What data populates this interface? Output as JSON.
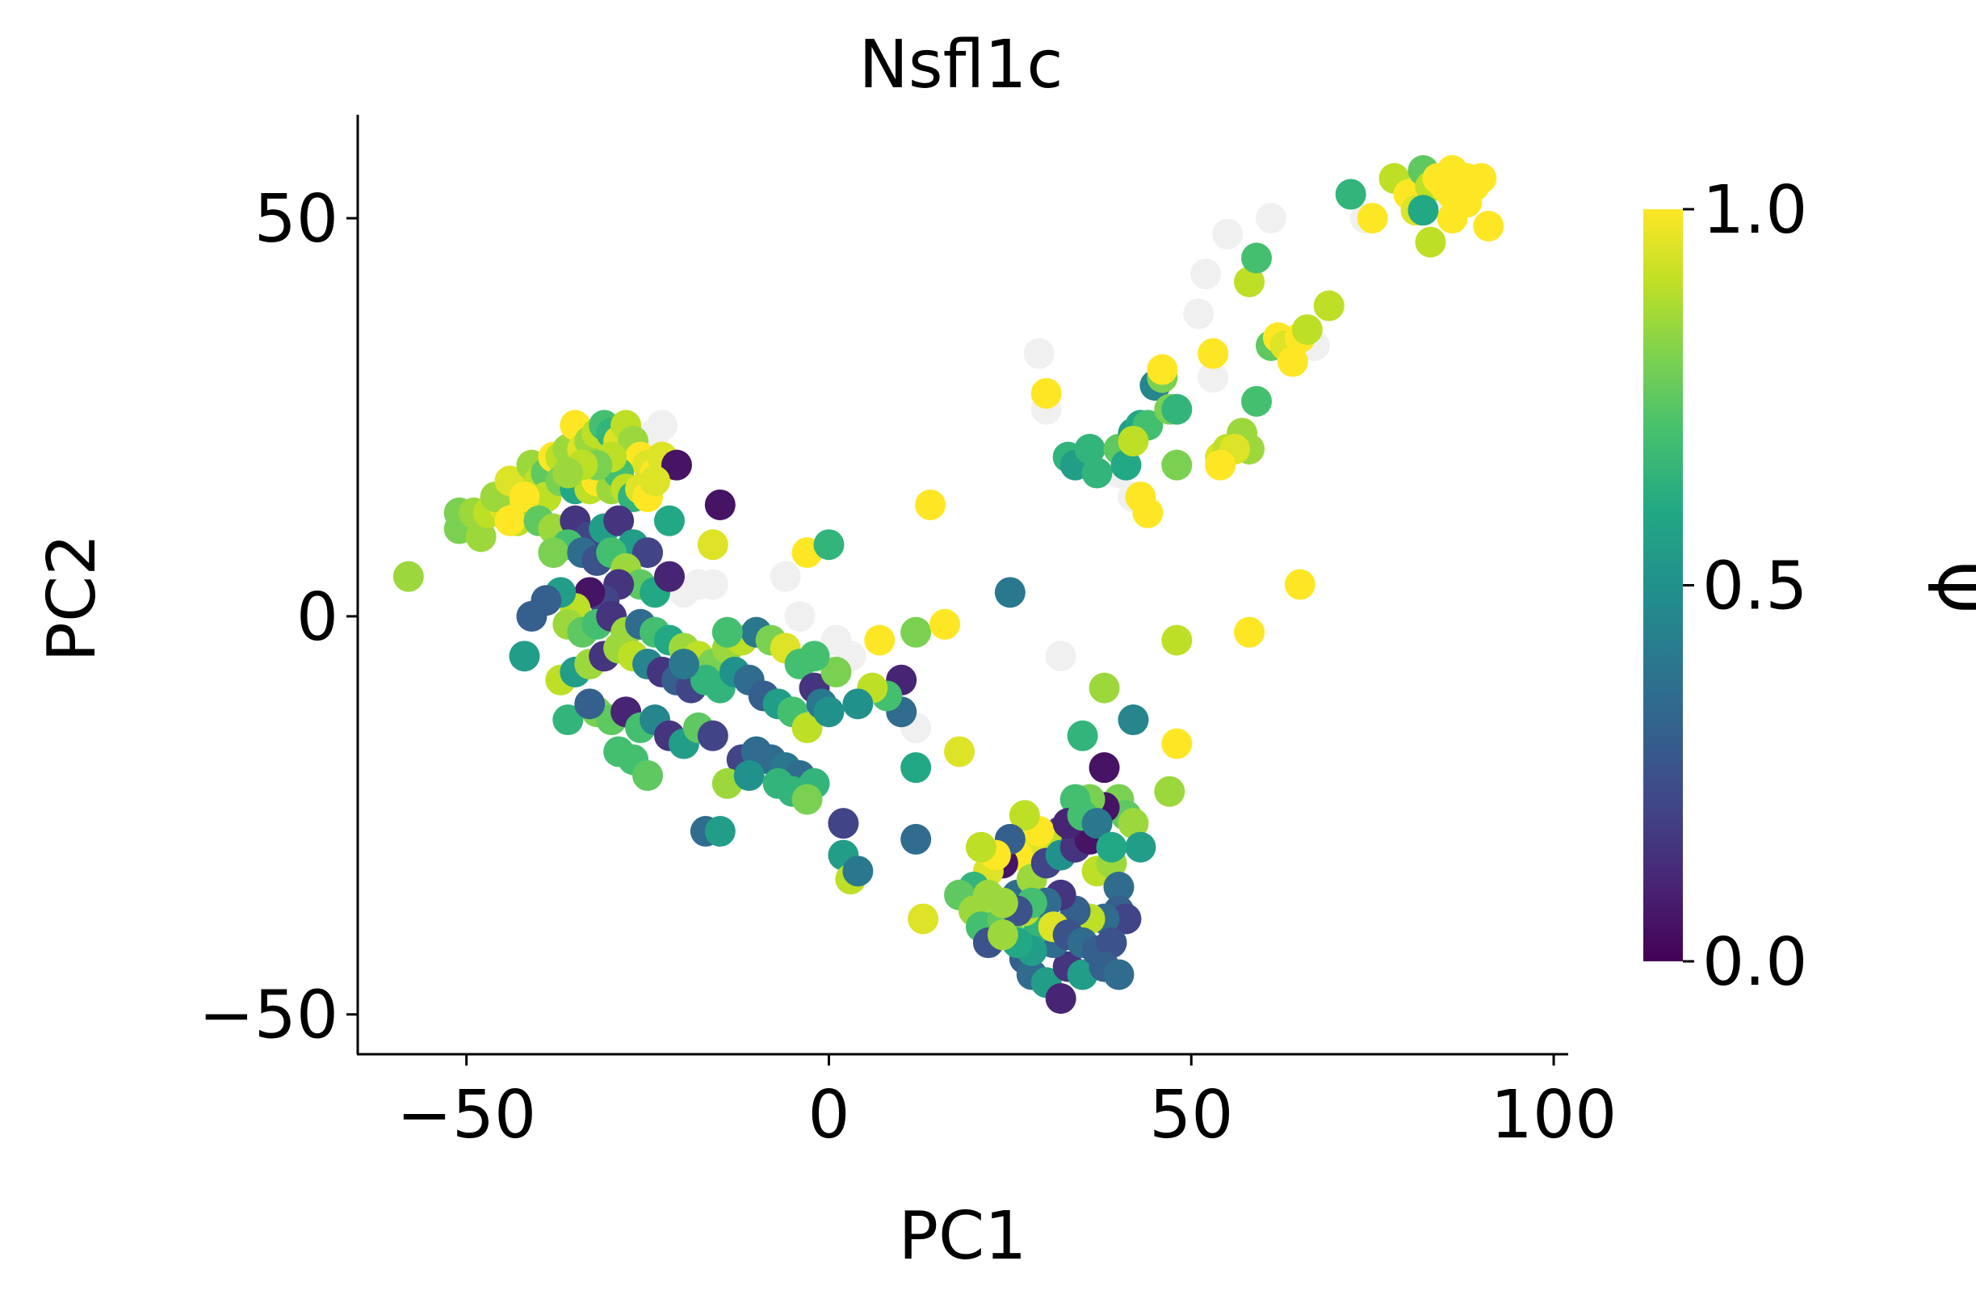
{
  "chart_data": {
    "type": "scatter",
    "title": "Nsfl1c",
    "xlabel": "PC1",
    "ylabel": "PC2",
    "xlim": [
      -65,
      102
    ],
    "ylim": [
      -55,
      63
    ],
    "xticks": [
      -50,
      0,
      50,
      100
    ],
    "xtick_labels": [
      "−50",
      "0",
      "50",
      "100"
    ],
    "yticks": [
      -50,
      0,
      50
    ],
    "ytick_labels": [
      "−50",
      "0",
      "50"
    ],
    "grid": false,
    "colorbar": {
      "label": "Ψ",
      "colormap": "viridis",
      "range": [
        0,
        1
      ],
      "ticks": [
        0.0,
        0.5,
        1.0
      ],
      "tick_labels": [
        "0.0",
        "0.5",
        "1.0"
      ]
    },
    "missing_color": "#f0f0f0",
    "na_points": [
      [
        -23,
        24
      ],
      [
        -24,
        23
      ],
      [
        -26,
        22
      ],
      [
        -16,
        4
      ],
      [
        -18,
        4
      ],
      [
        -20,
        3
      ],
      [
        -6,
        5
      ],
      [
        -4,
        0
      ],
      [
        1,
        -3
      ],
      [
        3,
        -5
      ],
      [
        12,
        -14
      ],
      [
        32,
        -5
      ],
      [
        29,
        33
      ],
      [
        -31,
        2
      ],
      [
        52,
        43
      ],
      [
        51,
        38
      ],
      [
        55,
        48
      ],
      [
        61,
        50
      ],
      [
        53,
        30
      ],
      [
        40,
        18
      ],
      [
        42,
        15
      ],
      [
        67,
        34
      ],
      [
        74,
        50
      ],
      [
        30,
        26
      ],
      [
        44,
        24
      ],
      [
        85,
        53
      ]
    ],
    "points": [
      [
        -58,
        5,
        0.85
      ],
      [
        -51,
        13,
        0.8
      ],
      [
        -51,
        11,
        0.8
      ],
      [
        -48,
        10,
        0.85
      ],
      [
        -49,
        13,
        0.85
      ],
      [
        -47,
        13,
        0.9
      ],
      [
        -45,
        14,
        0.95
      ],
      [
        -46,
        15,
        0.85
      ],
      [
        -43,
        12,
        0.9
      ],
      [
        -42,
        16,
        0.85
      ],
      [
        -44,
        17,
        0.95
      ],
      [
        -41,
        19,
        0.85
      ],
      [
        -40,
        17,
        0.9
      ],
      [
        -39,
        18,
        0.75
      ],
      [
        -38,
        20,
        1.0
      ],
      [
        -37,
        20,
        0.9
      ],
      [
        -36,
        21,
        0.85
      ],
      [
        -35,
        24,
        1.0
      ],
      [
        -34,
        21,
        0.95
      ],
      [
        -33,
        22,
        0.85
      ],
      [
        -32,
        23,
        0.9
      ],
      [
        -31,
        24,
        0.7
      ],
      [
        -30,
        23,
        0.65
      ],
      [
        -29,
        22,
        0.95
      ],
      [
        -28,
        24,
        0.9
      ],
      [
        -27,
        22,
        0.85
      ],
      [
        -26,
        20,
        1.0
      ],
      [
        -25,
        19,
        0.95
      ],
      [
        -24,
        18,
        1.0
      ],
      [
        -23,
        20,
        0.95
      ],
      [
        -22,
        19,
        0.95
      ],
      [
        -21,
        19,
        0.05
      ],
      [
        -39,
        15,
        0.9
      ],
      [
        -37,
        17,
        0.8
      ],
      [
        -35,
        16,
        0.6
      ],
      [
        -33,
        16,
        0.9
      ],
      [
        -32,
        17,
        1.0
      ],
      [
        -30,
        16,
        0.85
      ],
      [
        -29,
        18,
        0.7
      ],
      [
        -28,
        16,
        0.9
      ],
      [
        -27,
        15,
        0.65
      ],
      [
        -26,
        16,
        0.95
      ],
      [
        -25,
        15,
        1.0
      ],
      [
        -24,
        17,
        0.95
      ],
      [
        -30,
        20,
        0.9
      ],
      [
        -32,
        19,
        0.8
      ],
      [
        -34,
        19,
        0.9
      ],
      [
        -36,
        18,
        0.85
      ],
      [
        -42,
        15,
        1.0
      ],
      [
        -44,
        12,
        1.0
      ],
      [
        -40,
        12,
        0.75
      ],
      [
        -38,
        11,
        0.85
      ],
      [
        -35,
        12,
        0.15
      ],
      [
        -33,
        10,
        0.2
      ],
      [
        -31,
        11,
        0.55
      ],
      [
        -29,
        12,
        0.15
      ],
      [
        -27,
        9,
        0.55
      ],
      [
        -25,
        8,
        0.2
      ],
      [
        -36,
        9,
        0.7
      ],
      [
        -38,
        8,
        0.8
      ],
      [
        -34,
        8,
        0.35
      ],
      [
        -32,
        7,
        0.25
      ],
      [
        -30,
        8,
        0.7
      ],
      [
        -28,
        6,
        0.85
      ],
      [
        -26,
        4,
        0.75
      ],
      [
        -24,
        3,
        0.6
      ],
      [
        -22,
        5,
        0.1
      ],
      [
        -29,
        4,
        0.15
      ],
      [
        -31,
        2,
        0.2
      ],
      [
        -33,
        3,
        0.05
      ],
      [
        -35,
        1,
        0.9
      ],
      [
        -37,
        3,
        0.55
      ],
      [
        -39,
        2,
        0.3
      ],
      [
        -41,
        0,
        0.3
      ],
      [
        -42,
        -5,
        0.55
      ],
      [
        -36,
        -1,
        0.85
      ],
      [
        -34,
        -2,
        0.75
      ],
      [
        -32,
        -1,
        0.7
      ],
      [
        -30,
        0,
        0.15
      ],
      [
        -28,
        -2,
        0.85
      ],
      [
        -26,
        -1,
        0.35
      ],
      [
        -24,
        -2,
        0.7
      ],
      [
        -22,
        -3,
        0.6
      ],
      [
        -20,
        -4,
        0.85
      ],
      [
        -18,
        -5,
        0.9
      ],
      [
        -16,
        -6,
        0.8
      ],
      [
        -14,
        -4,
        0.85
      ],
      [
        -12,
        -3,
        0.9
      ],
      [
        -10,
        -2,
        0.4
      ],
      [
        -8,
        -3,
        0.8
      ],
      [
        -6,
        -4,
        0.95
      ],
      [
        -4,
        -6,
        0.7
      ],
      [
        -37,
        -8,
        0.9
      ],
      [
        -35,
        -7,
        0.55
      ],
      [
        -33,
        -6,
        0.85
      ],
      [
        -31,
        -5,
        0.15
      ],
      [
        -29,
        -4,
        0.85
      ],
      [
        -27,
        -5,
        0.9
      ],
      [
        -25,
        -6,
        0.45
      ],
      [
        -23,
        -7,
        0.15
      ],
      [
        -21,
        -8,
        0.3
      ],
      [
        -19,
        -9,
        0.2
      ],
      [
        -17,
        -8,
        0.65
      ],
      [
        -15,
        -9,
        0.65
      ],
      [
        -13,
        -7,
        0.5
      ],
      [
        -11,
        -8,
        0.35
      ],
      [
        -9,
        -10,
        0.3
      ],
      [
        -7,
        -11,
        0.55
      ],
      [
        -5,
        -12,
        0.7
      ],
      [
        -3,
        -14,
        0.9
      ],
      [
        -36,
        -13,
        0.65
      ],
      [
        -32,
        -12,
        0.8
      ],
      [
        -30,
        -13,
        0.75
      ],
      [
        -28,
        -12,
        0.1
      ],
      [
        -26,
        -14,
        0.7
      ],
      [
        -24,
        -13,
        0.45
      ],
      [
        -22,
        -15,
        0.15
      ],
      [
        -20,
        -16,
        0.55
      ],
      [
        -18,
        -14,
        0.75
      ],
      [
        -16,
        -15,
        0.2
      ],
      [
        -29,
        -17,
        0.7
      ],
      [
        -27,
        -18,
        0.7
      ],
      [
        -25,
        -20,
        0.75
      ],
      [
        -12,
        -18,
        0.2
      ],
      [
        -10,
        -17,
        0.35
      ],
      [
        -8,
        -18,
        0.35
      ],
      [
        -6,
        -19,
        0.4
      ],
      [
        -4,
        -20,
        0.35
      ],
      [
        -2,
        -21,
        0.65
      ],
      [
        -14,
        -21,
        0.85
      ],
      [
        -11,
        -20,
        0.5
      ],
      [
        -7,
        -21,
        0.65
      ],
      [
        -5,
        -22,
        0.65
      ],
      [
        -3,
        -23,
        0.8
      ],
      [
        -17,
        -27,
        0.35
      ],
      [
        -15,
        -27,
        0.55
      ],
      [
        2,
        -26,
        0.2
      ],
      [
        2,
        -30,
        0.55
      ],
      [
        3,
        -33,
        0.9
      ],
      [
        4,
        -32,
        0.4
      ],
      [
        10,
        -8,
        0.1
      ],
      [
        10,
        -12,
        0.35
      ],
      [
        12,
        -19,
        0.6
      ],
      [
        12,
        -28,
        0.35
      ],
      [
        13,
        -38,
        0.95
      ],
      [
        18,
        -17,
        0.95
      ],
      [
        8,
        -10,
        0.7
      ],
      [
        6,
        -9,
        0.9
      ],
      [
        4,
        -11,
        0.5
      ],
      [
        -2,
        -9,
        0.15
      ],
      [
        -1,
        -11,
        0.4
      ],
      [
        0,
        -12,
        0.5
      ],
      [
        1,
        -7,
        0.8
      ],
      [
        -2,
        -5,
        0.7
      ],
      [
        -14,
        -2,
        0.7
      ],
      [
        -20,
        -6,
        0.4
      ],
      [
        -33,
        -11,
        0.3
      ],
      [
        -15,
        14,
        0.05
      ],
      [
        -16,
        9,
        0.95
      ],
      [
        -22,
        12,
        0.6
      ],
      [
        -3,
        8,
        1.0
      ],
      [
        0,
        9,
        0.65
      ],
      [
        14,
        14,
        1.0
      ],
      [
        7,
        -3,
        1.0
      ],
      [
        12,
        -2,
        0.8
      ],
      [
        16,
        -1,
        1.0
      ],
      [
        25,
        3,
        0.4
      ],
      [
        30,
        28,
        1.0
      ],
      [
        33,
        20,
        0.65
      ],
      [
        34,
        19,
        0.55
      ],
      [
        37,
        18,
        0.65
      ],
      [
        36,
        21,
        0.65
      ],
      [
        40,
        21,
        0.75
      ],
      [
        41,
        19,
        0.6
      ],
      [
        42,
        23,
        0.55
      ],
      [
        43,
        24,
        0.6
      ],
      [
        44,
        24,
        0.7
      ],
      [
        45,
        29,
        0.45
      ],
      [
        46,
        30,
        1.0
      ],
      [
        47,
        26,
        0.8
      ],
      [
        48,
        26,
        0.65
      ],
      [
        48,
        19,
        0.8
      ],
      [
        46,
        30,
        0.8
      ],
      [
        46,
        31,
        1.0
      ],
      [
        42,
        22,
        0.9
      ],
      [
        43,
        15,
        1.0
      ],
      [
        44,
        13,
        1.0
      ],
      [
        53,
        33,
        1.0
      ],
      [
        54,
        20,
        0.95
      ],
      [
        55,
        21,
        0.9
      ],
      [
        57,
        23,
        0.85
      ],
      [
        58,
        21,
        0.85
      ],
      [
        56,
        21,
        0.95
      ],
      [
        54,
        19,
        1.0
      ],
      [
        58,
        42,
        0.9
      ],
      [
        59,
        45,
        0.7
      ],
      [
        61,
        34,
        0.75
      ],
      [
        62,
        35,
        1.0
      ],
      [
        63,
        34,
        0.95
      ],
      [
        64,
        32,
        1.0
      ],
      [
        65,
        35,
        1.0
      ],
      [
        66,
        36,
        0.9
      ],
      [
        69,
        39,
        0.9
      ],
      [
        59,
        27,
        0.7
      ],
      [
        72,
        53,
        0.65
      ],
      [
        75,
        50,
        1.0
      ],
      [
        78,
        55,
        0.9
      ],
      [
        80,
        53,
        1.0
      ],
      [
        81,
        51,
        0.95
      ],
      [
        82,
        56,
        0.75
      ],
      [
        83,
        54,
        0.9
      ],
      [
        84,
        55,
        1.0
      ],
      [
        85,
        54,
        1.0
      ],
      [
        86,
        56,
        1.0
      ],
      [
        87,
        54,
        1.0
      ],
      [
        88,
        55,
        1.0
      ],
      [
        89,
        54,
        1.0
      ],
      [
        90,
        55,
        1.0
      ],
      [
        91,
        49,
        1.0
      ],
      [
        86,
        50,
        1.0
      ],
      [
        83,
        47,
        0.9
      ],
      [
        82,
        51,
        0.6
      ],
      [
        88,
        52,
        1.0
      ],
      [
        86,
        53,
        1.0
      ],
      [
        65,
        4,
        1.0
      ],
      [
        58,
        -2,
        1.0
      ],
      [
        48,
        -3,
        0.9
      ],
      [
        48,
        -16,
        1.0
      ],
      [
        47,
        -22,
        0.85
      ],
      [
        42,
        -13,
        0.45
      ],
      [
        38,
        -9,
        0.85
      ],
      [
        35,
        -15,
        0.65
      ],
      [
        38,
        -19,
        0.05
      ],
      [
        40,
        -23,
        0.8
      ],
      [
        41,
        -25,
        0.75
      ],
      [
        42,
        -26,
        0.85
      ],
      [
        43,
        -29,
        0.55
      ],
      [
        38,
        -24,
        0.05
      ],
      [
        36,
        -23,
        0.8
      ],
      [
        34,
        -23,
        0.7
      ],
      [
        32,
        -27,
        0.15
      ],
      [
        30,
        -28,
        0.9
      ],
      [
        28,
        -29,
        0.95
      ],
      [
        26,
        -30,
        1.0
      ],
      [
        24,
        -31,
        0.05
      ],
      [
        22,
        -32,
        0.95
      ],
      [
        20,
        -34,
        0.65
      ],
      [
        18,
        -35,
        0.75
      ],
      [
        20,
        -37,
        0.85
      ],
      [
        21,
        -39,
        0.7
      ],
      [
        22,
        -41,
        0.25
      ],
      [
        24,
        -38,
        0.75
      ],
      [
        25,
        -40,
        0.8
      ],
      [
        27,
        -43,
        0.3
      ],
      [
        28,
        -45,
        0.35
      ],
      [
        30,
        -46,
        0.55
      ],
      [
        32,
        -48,
        0.1
      ],
      [
        33,
        -44,
        0.15
      ],
      [
        35,
        -45,
        0.55
      ],
      [
        31,
        -41,
        0.35
      ],
      [
        29,
        -39,
        0.65
      ],
      [
        27,
        -37,
        0.9
      ],
      [
        26,
        -35,
        0.35
      ],
      [
        28,
        -33,
        0.85
      ],
      [
        30,
        -31,
        0.2
      ],
      [
        32,
        -30,
        0.5
      ],
      [
        34,
        -29,
        0.15
      ],
      [
        36,
        -28,
        0.05
      ],
      [
        37,
        -32,
        0.9
      ],
      [
        39,
        -31,
        0.85
      ],
      [
        40,
        -34,
        0.35
      ],
      [
        40,
        -37,
        0.3
      ],
      [
        41,
        -38,
        0.2
      ],
      [
        38,
        -38,
        0.35
      ],
      [
        36,
        -38,
        0.9
      ],
      [
        34,
        -37,
        0.3
      ],
      [
        32,
        -35,
        0.15
      ],
      [
        30,
        -36,
        0.35
      ],
      [
        28,
        -36,
        0.7
      ],
      [
        26,
        -37,
        0.25
      ],
      [
        24,
        -36,
        0.85
      ],
      [
        22,
        -35,
        0.85
      ],
      [
        31,
        -39,
        0.95
      ],
      [
        33,
        -40,
        0.25
      ],
      [
        35,
        -41,
        0.35
      ],
      [
        37,
        -42,
        0.3
      ],
      [
        39,
        -41,
        0.25
      ],
      [
        28,
        -42,
        0.55
      ],
      [
        26,
        -41,
        0.6
      ],
      [
        24,
        -40,
        0.85
      ],
      [
        38,
        -44,
        0.3
      ],
      [
        40,
        -45,
        0.35
      ],
      [
        29,
        -27,
        1.0
      ],
      [
        27,
        -25,
        0.9
      ],
      [
        25,
        -28,
        0.3
      ],
      [
        23,
        -30,
        1.0
      ],
      [
        21,
        -29,
        0.9
      ],
      [
        33,
        -26,
        0.1
      ],
      [
        35,
        -25,
        0.7
      ],
      [
        37,
        -26,
        0.4
      ],
      [
        39,
        -29,
        0.6
      ]
    ]
  }
}
